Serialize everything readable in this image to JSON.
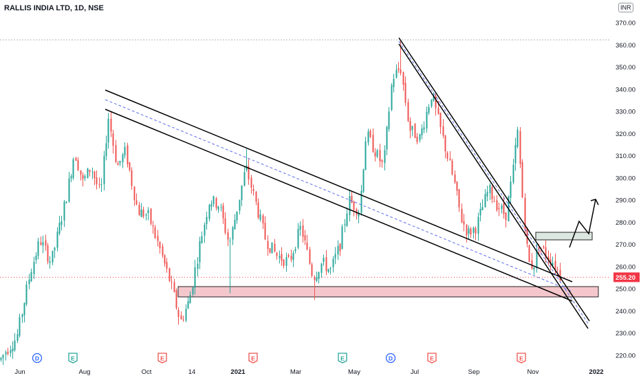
{
  "header": {
    "title": "RALLIS INDIA LTD, 1D, NSE",
    "currency": "INR"
  },
  "colors": {
    "up": "#26a69a",
    "down": "#ef5350",
    "trendline": "#000000",
    "midline": "#5b6ee8",
    "zone_fill": "#f4c7cc",
    "resist_fill": "#dce8df",
    "last_price": "#f23645"
  },
  "chart_data": {
    "type": "candlestick",
    "y_ticks": [
      "370.00",
      "360.00",
      "350.00",
      "340.00",
      "330.00",
      "320.00",
      "310.00",
      "300.00",
      "290.00",
      "280.00",
      "270.00",
      "260.00",
      "250.00",
      "240.00",
      "230.00",
      "220.00"
    ],
    "x_ticks": [
      "Jun",
      "Aug",
      "Oct",
      "14",
      "2021",
      "Mar",
      "May",
      "Jul",
      "Sep",
      "Nov",
      "2022"
    ],
    "ylim": [
      215,
      373
    ],
    "last_price": "255.20",
    "pivots": [
      {
        "x": 0,
        "y": 218
      },
      {
        "x": 8,
        "y": 222
      },
      {
        "x": 24,
        "y": 228
      },
      {
        "x": 44,
        "y": 258
      },
      {
        "x": 58,
        "y": 272
      },
      {
        "x": 74,
        "y": 262
      },
      {
        "x": 95,
        "y": 290
      },
      {
        "x": 108,
        "y": 312
      },
      {
        "x": 120,
        "y": 298
      },
      {
        "x": 132,
        "y": 305
      },
      {
        "x": 146,
        "y": 292
      },
      {
        "x": 157,
        "y": 328
      },
      {
        "x": 170,
        "y": 305
      },
      {
        "x": 182,
        "y": 312
      },
      {
        "x": 200,
        "y": 285
      },
      {
        "x": 215,
        "y": 283
      },
      {
        "x": 232,
        "y": 268
      },
      {
        "x": 248,
        "y": 252
      },
      {
        "x": 262,
        "y": 235
      },
      {
        "x": 275,
        "y": 245
      },
      {
        "x": 290,
        "y": 270
      },
      {
        "x": 304,
        "y": 290
      },
      {
        "x": 318,
        "y": 288
      },
      {
        "x": 333,
        "y": 270
      },
      {
        "x": 345,
        "y": 287
      },
      {
        "x": 357,
        "y": 305
      },
      {
        "x": 372,
        "y": 288
      },
      {
        "x": 386,
        "y": 272
      },
      {
        "x": 402,
        "y": 265
      },
      {
        "x": 420,
        "y": 262
      },
      {
        "x": 437,
        "y": 278
      },
      {
        "x": 455,
        "y": 255
      },
      {
        "x": 468,
        "y": 262
      },
      {
        "x": 480,
        "y": 258
      },
      {
        "x": 494,
        "y": 270
      },
      {
        "x": 507,
        "y": 290
      },
      {
        "x": 522,
        "y": 285
      },
      {
        "x": 532,
        "y": 320
      },
      {
        "x": 545,
        "y": 312
      },
      {
        "x": 557,
        "y": 305
      },
      {
        "x": 570,
        "y": 345
      },
      {
        "x": 582,
        "y": 350
      },
      {
        "x": 595,
        "y": 322
      },
      {
        "x": 610,
        "y": 318
      },
      {
        "x": 627,
        "y": 338
      },
      {
        "x": 645,
        "y": 316
      },
      {
        "x": 660,
        "y": 298
      },
      {
        "x": 670,
        "y": 282
      },
      {
        "x": 680,
        "y": 275
      },
      {
        "x": 692,
        "y": 278
      },
      {
        "x": 710,
        "y": 295
      },
      {
        "x": 722,
        "y": 288
      },
      {
        "x": 735,
        "y": 283
      },
      {
        "x": 745,
        "y": 302
      },
      {
        "x": 752,
        "y": 322
      },
      {
        "x": 760,
        "y": 288
      },
      {
        "x": 768,
        "y": 262
      },
      {
        "x": 775,
        "y": 260
      },
      {
        "x": 783,
        "y": 270
      },
      {
        "x": 795,
        "y": 265
      },
      {
        "x": 805,
        "y": 262
      },
      {
        "x": 815,
        "y": 255
      }
    ],
    "markers": [
      {
        "label": "D",
        "x": 54,
        "kind": "dividend"
      },
      {
        "label": "E",
        "x": 106,
        "kind": "earnings-green"
      },
      {
        "label": "E",
        "x": 236,
        "kind": "earnings"
      },
      {
        "label": "E",
        "x": 368,
        "kind": "earnings"
      },
      {
        "label": "E",
        "x": 498,
        "kind": "earnings-green"
      },
      {
        "label": "D",
        "x": 568,
        "kind": "dividend"
      },
      {
        "label": "E",
        "x": 628,
        "kind": "earnings"
      },
      {
        "label": "E",
        "x": 758,
        "kind": "earnings"
      }
    ]
  }
}
